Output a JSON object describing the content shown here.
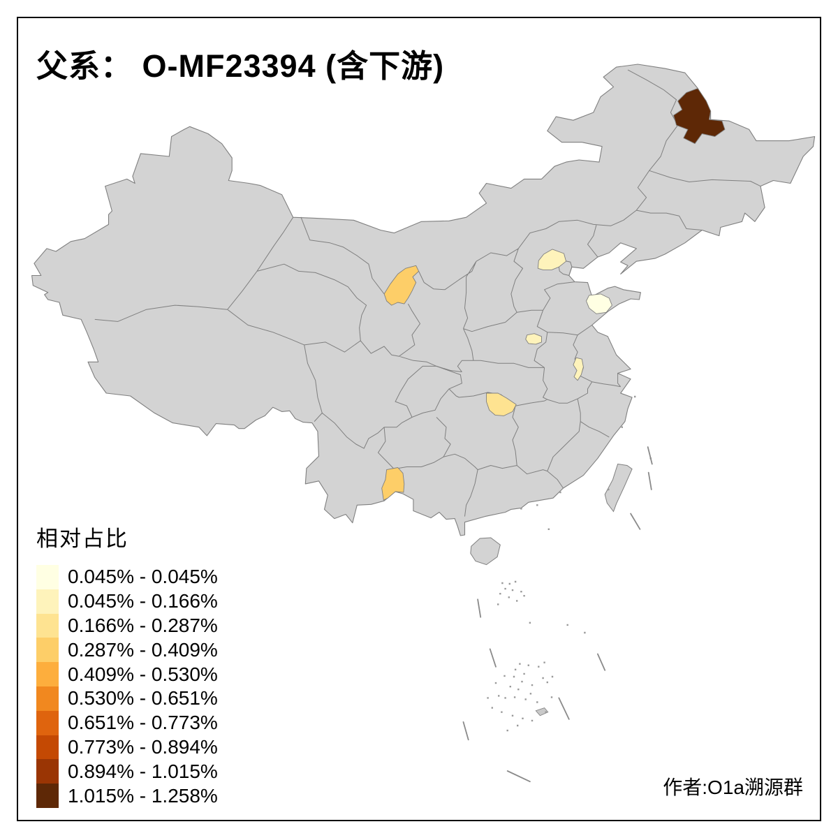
{
  "title": "父系： O-MF23394 (含下游)",
  "legend": {
    "title": "相对占比",
    "items": [
      {
        "label": "0.045% - 0.045%",
        "color": "#FFFFE3"
      },
      {
        "label": "0.045% - 0.166%",
        "color": "#FEF3BB"
      },
      {
        "label": "0.166% - 0.287%",
        "color": "#FEE391"
      },
      {
        "label": "0.287% - 0.409%",
        "color": "#FDCE68"
      },
      {
        "label": "0.409% - 0.530%",
        "color": "#FDAE3D"
      },
      {
        "label": "0.530% - 0.651%",
        "color": "#F1881F"
      },
      {
        "label": "0.651% - 0.773%",
        "color": "#DF640E"
      },
      {
        "label": "0.773% - 0.894%",
        "color": "#C44903"
      },
      {
        "label": "0.894% - 1.015%",
        "color": "#9A3504"
      },
      {
        "label": "1.015% - 1.258%",
        "color": "#5E2806"
      }
    ]
  },
  "attribution": "作者:O1a溯源群",
  "map": {
    "land_color": "#D3D3D3",
    "border_color": "#7F7F7F",
    "sea_color": "#FFFFFF",
    "islet_color": "#C9C9C9",
    "regions": [
      {
        "name": "heilongjiang-north",
        "range": "1.015% - 1.258%",
        "color": "#5E2806"
      },
      {
        "name": "beijing",
        "range": "0.045% - 0.166%",
        "color": "#FEF3BB"
      },
      {
        "name": "shandong-east",
        "range": "0.045% - 0.045%",
        "color": "#FFFFE3"
      },
      {
        "name": "henan-east",
        "range": "0.045% - 0.166%",
        "color": "#FEF3BB"
      },
      {
        "name": "anhui-east",
        "range": "0.045% - 0.166%",
        "color": "#FEF3BB"
      },
      {
        "name": "hunan-north",
        "range": "0.166% - 0.287%",
        "color": "#FEE391"
      },
      {
        "name": "ningxia",
        "range": "0.287% - 0.409%",
        "color": "#FDCE68"
      },
      {
        "name": "yunnan-southeast",
        "range": "0.287% - 0.409%",
        "color": "#FDCE68"
      }
    ]
  }
}
